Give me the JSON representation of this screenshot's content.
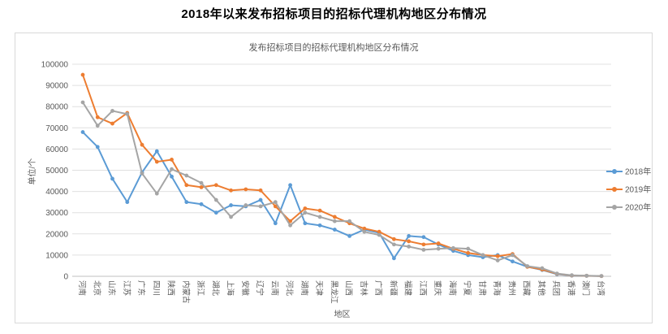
{
  "page": {
    "title": "2018年以来发布招标项目的招标代理机构地区分布情况"
  },
  "chart_data": {
    "type": "line",
    "title": "发布招标项目的招标代理机构地区分布情况",
    "xlabel": "地区",
    "ylabel": "单位/个",
    "ylim": [
      0,
      100000
    ],
    "ytick_step": 10000,
    "grid": true,
    "legend_position": "right",
    "categories": [
      "河南",
      "北京",
      "山东",
      "江苏",
      "广东",
      "四川",
      "陕西",
      "内蒙古",
      "浙江",
      "湖北",
      "上海",
      "安徽",
      "辽宁",
      "云南",
      "河北",
      "湖南",
      "天津",
      "黑龙江",
      "山西",
      "吉林",
      "广西",
      "新疆",
      "福建",
      "江西",
      "重庆",
      "海南",
      "宁夏",
      "甘肃",
      "青海",
      "贵州",
      "西藏",
      "其他",
      "兵团",
      "香港",
      "澳门",
      "台湾"
    ],
    "series": [
      {
        "name": "2018年",
        "color": "#5B9BD5",
        "values": [
          68000,
          61000,
          46000,
          35000,
          49000,
          59000,
          47000,
          35000,
          34000,
          30000,
          33500,
          33000,
          36000,
          25000,
          43000,
          25000,
          24000,
          22000,
          19000,
          22000,
          20500,
          8500,
          19000,
          18500,
          15000,
          12000,
          10000,
          9000,
          10000,
          7000,
          4500,
          3000,
          1000,
          300,
          200,
          100
        ]
      },
      {
        "name": "2019年",
        "color": "#ED7D31",
        "values": [
          95000,
          75000,
          72000,
          77000,
          62000,
          54000,
          55000,
          43000,
          42000,
          43000,
          40500,
          41000,
          40500,
          33000,
          26000,
          32000,
          31000,
          28000,
          25000,
          22500,
          21000,
          17500,
          16500,
          15000,
          15500,
          13000,
          11000,
          10000,
          9500,
          10500,
          4500,
          3200,
          1200,
          400,
          250,
          100
        ]
      },
      {
        "name": "2020年",
        "color": "#A5A5A5",
        "values": [
          82000,
          71000,
          78000,
          76500,
          48500,
          39000,
          50500,
          47500,
          44000,
          36000,
          28000,
          33500,
          33000,
          35000,
          24000,
          30000,
          28000,
          26000,
          26000,
          21000,
          19500,
          15000,
          14000,
          12500,
          13000,
          13300,
          13000,
          10000,
          7500,
          10000,
          4800,
          3800,
          1300,
          500,
          300,
          150
        ]
      }
    ]
  },
  "colors": {
    "grid": "#e0e0e0",
    "axis": "#bfbfbf",
    "text": "#595959",
    "tick_text": "#595959",
    "panel_border": "#d9d9d9"
  }
}
